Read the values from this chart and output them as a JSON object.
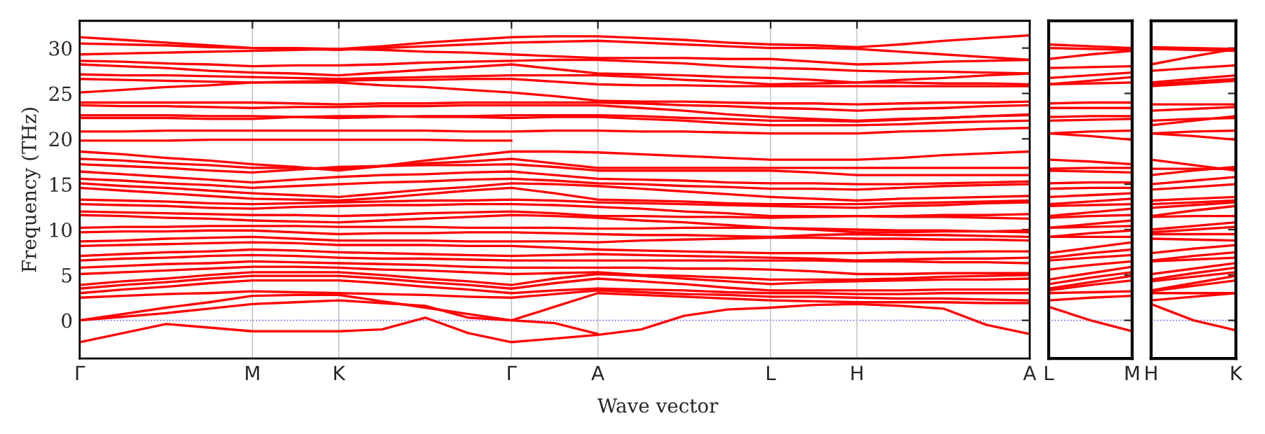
{
  "chart_data": [
    {
      "type": "line",
      "ylabel": "Frequency (THz)",
      "xlabel": "Wave vector",
      "categories": [
        "Γ",
        null,
        null,
        null,
        "M",
        null,
        "K",
        null,
        null,
        null,
        "Γ",
        null,
        "A",
        null,
        null,
        null,
        "L",
        null,
        "H",
        null,
        null,
        null,
        "A"
      ],
      "ylim": [
        -4.2,
        33
      ],
      "yticks": [
        0,
        5,
        10,
        15,
        20,
        25,
        30
      ],
      "grid": "x",
      "line_style": "solid",
      "ref_lines": [
        {
          "axis": "y",
          "value": 0,
          "color": "#6666ff",
          "line_style": "dotted"
        }
      ],
      "series": [
        {
          "color": "#ff0000",
          "values": [
            31.2,
            30.9,
            30.6,
            30.3,
            30.0,
            30.0,
            29.9,
            30.2,
            30.6,
            30.9,
            31.2,
            31.3,
            31.3,
            31.1,
            30.9,
            30.6,
            30.4,
            30.3,
            30.1,
            30.4,
            30.8,
            31.1,
            31.4
          ]
        },
        {
          "color": "#ff0000",
          "values": [
            30.5,
            30.4,
            30.3,
            30.1,
            30.0,
            29.9,
            29.8,
            30.0,
            30.2,
            30.4,
            30.6,
            30.7,
            30.8,
            30.6,
            30.4,
            30.2,
            30.0,
            30.0,
            29.9,
            29.6,
            29.3,
            29.0,
            28.7
          ]
        },
        {
          "color": "#ff0000",
          "values": [
            29.3,
            29.4,
            29.5,
            29.6,
            29.7,
            29.8,
            29.9,
            29.8,
            29.6,
            29.5,
            29.3,
            29.1,
            28.9,
            28.9,
            28.9,
            28.8,
            28.8,
            28.5,
            28.2,
            28.3,
            28.5,
            28.6,
            28.7
          ]
        },
        {
          "color": "#ff0000",
          "values": [
            28.6,
            28.5,
            28.3,
            28.2,
            28.0,
            28.1,
            28.1,
            28.2,
            28.4,
            28.5,
            28.6,
            28.7,
            28.7,
            28.5,
            28.3,
            28.0,
            27.8,
            27.7,
            27.5,
            27.4,
            27.4,
            27.3,
            27.2
          ]
        },
        {
          "color": "#ff0000",
          "values": [
            28.2,
            28.0,
            27.8,
            27.5,
            27.3,
            27.2,
            27.0,
            27.3,
            27.6,
            27.9,
            28.2,
            27.7,
            27.2,
            27.1,
            27.0,
            26.8,
            26.7,
            26.5,
            26.2,
            26.5,
            26.7,
            27.0,
            27.2
          ]
        },
        {
          "color": "#ff0000",
          "values": [
            27.1,
            27.0,
            27.0,
            26.9,
            26.8,
            26.7,
            26.6,
            26.7,
            26.8,
            26.9,
            27.0,
            27.0,
            27.0,
            26.8,
            26.5,
            26.3,
            26.0,
            26.1,
            26.2,
            26.2,
            26.1,
            26.1,
            26.0
          ]
        },
        {
          "color": "#ff0000",
          "values": [
            26.6,
            26.5,
            26.4,
            26.3,
            26.2,
            26.3,
            26.4,
            26.5,
            26.5,
            26.6,
            26.6,
            26.3,
            26.0,
            25.9,
            25.9,
            25.8,
            25.8,
            25.8,
            25.8,
            25.8,
            25.8,
            25.8,
            25.8
          ]
        },
        {
          "color": "#ff0000",
          "values": [
            25.1,
            25.4,
            25.7,
            25.9,
            26.2,
            26.2,
            26.2,
            25.9,
            25.7,
            25.4,
            25.1,
            24.7,
            24.2,
            24.1,
            24.1,
            24.0,
            23.9,
            23.9,
            23.8,
            23.9,
            24.0,
            24.0,
            24.1
          ]
        },
        {
          "color": "#ff0000",
          "values": [
            24.0,
            24.0,
            24.0,
            24.0,
            24.0,
            23.9,
            23.8,
            23.9,
            23.9,
            24.0,
            24.0,
            24.0,
            24.0,
            23.9,
            23.7,
            23.6,
            23.4,
            23.3,
            23.1,
            23.3,
            23.4,
            23.6,
            23.7
          ]
        },
        {
          "color": "#ff0000",
          "values": [
            23.7,
            23.6,
            23.6,
            23.5,
            23.4,
            23.5,
            23.5,
            23.6,
            23.6,
            23.7,
            23.7,
            23.7,
            23.7,
            23.4,
            23.1,
            22.7,
            22.4,
            22.2,
            22.0,
            22.2,
            22.3,
            22.5,
            22.6
          ]
        },
        {
          "color": "#ff0000",
          "values": [
            22.6,
            22.6,
            22.6,
            22.5,
            22.5,
            22.4,
            22.3,
            22.4,
            22.5,
            22.5,
            22.6,
            22.6,
            22.6,
            22.5,
            22.3,
            22.2,
            22.0,
            22.0,
            21.9,
            22.1,
            22.3,
            22.5,
            22.7
          ]
        },
        {
          "color": "#ff0000",
          "values": [
            22.3,
            22.3,
            22.3,
            22.2,
            22.2,
            22.4,
            22.5,
            22.5,
            22.4,
            22.4,
            22.3,
            22.4,
            22.4,
            22.2,
            22.0,
            21.7,
            21.5,
            21.5,
            21.5,
            21.6,
            21.8,
            21.9,
            22.0
          ]
        },
        {
          "color": "#ff0000",
          "values": [
            20.8,
            20.8,
            20.9,
            20.9,
            20.9,
            20.9,
            20.9,
            20.9,
            20.9,
            20.8,
            20.8,
            20.9,
            20.9,
            20.8,
            20.8,
            20.7,
            20.6,
            20.6,
            20.6,
            20.8,
            20.9,
            21.1,
            21.2
          ]
        },
        {
          "color": "#ff0000",
          "values": [
            19.8,
            19.8,
            19.8,
            19.9,
            19.9,
            19.9,
            19.9,
            19.9,
            19.9,
            19.8,
            19.8,
            null,
            null,
            null,
            null,
            null,
            null,
            null,
            null,
            null,
            null,
            null,
            null
          ]
        },
        {
          "color": "#ff0000",
          "values": [
            18.6,
            18.3,
            17.9,
            17.6,
            17.2,
            16.9,
            16.5,
            17.0,
            17.6,
            18.1,
            18.6,
            18.6,
            18.5,
            18.3,
            18.1,
            17.9,
            17.7,
            17.7,
            17.7,
            17.9,
            18.2,
            18.4,
            18.6
          ]
        },
        {
          "color": "#ff0000",
          "values": [
            17.8,
            17.6,
            17.3,
            17.1,
            16.8,
            16.8,
            16.7,
            17.0,
            17.3,
            17.5,
            17.8,
            17.3,
            16.8,
            16.8,
            16.8,
            16.8,
            16.8,
            16.8,
            16.8,
            16.8,
            16.8,
            16.8,
            16.8
          ]
        },
        {
          "color": "#ff0000",
          "values": [
            17.2,
            17.0,
            16.8,
            16.5,
            16.3,
            16.6,
            16.9,
            17.0,
            17.1,
            17.1,
            17.2,
            16.9,
            16.5,
            16.5,
            16.5,
            16.5,
            16.5,
            16.3,
            16.0,
            16.0,
            16.0,
            16.0,
            16.0
          ]
        },
        {
          "color": "#ff0000",
          "values": [
            16.4,
            16.1,
            15.8,
            15.5,
            15.2,
            15.5,
            15.8,
            16.0,
            16.1,
            16.3,
            16.4,
            16.0,
            15.6,
            15.5,
            15.4,
            15.2,
            15.1,
            15.1,
            15.0,
            15.0,
            15.1,
            15.2,
            15.3
          ]
        },
        {
          "color": "#ff0000",
          "values": [
            15.6,
            15.4,
            15.1,
            14.9,
            14.6,
            14.8,
            15.0,
            15.2,
            15.3,
            15.5,
            15.6,
            15.4,
            15.1,
            15.0,
            14.8,
            14.7,
            14.5,
            14.5,
            14.4,
            14.6,
            14.8,
            14.9,
            15.0
          ]
        },
        {
          "color": "#ff0000",
          "values": [
            15.1,
            14.8,
            14.6,
            14.3,
            14.0,
            13.8,
            13.6,
            14.0,
            14.4,
            14.7,
            15.1,
            15.0,
            14.8,
            14.5,
            14.2,
            13.9,
            13.6,
            13.4,
            13.2,
            13.4,
            13.5,
            13.6,
            13.7
          ]
        },
        {
          "color": "#ff0000",
          "values": [
            14.6,
            14.3,
            14.0,
            13.7,
            13.4,
            13.3,
            13.2,
            13.5,
            13.9,
            14.3,
            14.6,
            14.0,
            13.3,
            13.2,
            13.1,
            12.9,
            12.8,
            12.8,
            12.8,
            12.9,
            13.0,
            13.1,
            13.2
          ]
        },
        {
          "color": "#ff0000",
          "values": [
            13.3,
            13.2,
            13.1,
            12.9,
            12.8,
            12.9,
            13.0,
            13.1,
            13.2,
            13.2,
            13.3,
            13.2,
            13.0,
            12.9,
            12.8,
            12.7,
            12.6,
            12.5,
            12.4,
            12.6,
            12.7,
            12.9,
            13.0
          ]
        },
        {
          "color": "#ff0000",
          "values": [
            12.8,
            12.7,
            12.6,
            12.4,
            12.3,
            12.5,
            12.6,
            12.7,
            12.7,
            12.8,
            12.8,
            12.7,
            12.5,
            12.3,
            12.0,
            11.8,
            11.5,
            11.5,
            11.5,
            11.4,
            11.4,
            11.3,
            11.2
          ]
        },
        {
          "color": "#ff0000",
          "values": [
            12.0,
            11.9,
            11.8,
            11.7,
            11.6,
            11.6,
            11.5,
            11.6,
            11.8,
            11.9,
            12.0,
            11.8,
            11.5,
            11.5,
            11.4,
            11.4,
            11.3,
            11.4,
            11.5,
            11.5,
            11.6,
            11.6,
            11.7
          ]
        },
        {
          "color": "#ff0000",
          "values": [
            11.6,
            11.5,
            11.3,
            11.2,
            11.0,
            10.9,
            10.8,
            11.0,
            11.2,
            11.4,
            11.6,
            11.5,
            11.3,
            11.0,
            10.8,
            10.5,
            10.2,
            10.1,
            10.0,
            9.9,
            9.9,
            9.8,
            9.7
          ]
        },
        {
          "color": "#ff0000",
          "values": [
            10.2,
            10.3,
            10.3,
            10.4,
            10.4,
            10.4,
            10.3,
            10.3,
            10.3,
            10.2,
            10.2,
            10.2,
            10.1,
            10.1,
            10.2,
            10.2,
            10.2,
            10.0,
            9.7,
            9.7,
            9.8,
            9.8,
            9.9
          ]
        },
        {
          "color": "#ff0000",
          "values": [
            9.7,
            9.8,
            9.8,
            9.9,
            9.9,
            9.7,
            9.5,
            9.6,
            9.6,
            9.7,
            9.7,
            9.6,
            9.5,
            9.4,
            9.4,
            9.3,
            9.2,
            9.4,
            9.5,
            9.4,
            9.4,
            9.3,
            9.2
          ]
        },
        {
          "color": "#ff0000",
          "values": [
            8.7,
            8.8,
            9.0,
            9.1,
            9.2,
            9.0,
            8.8,
            8.8,
            8.8,
            8.7,
            8.7,
            8.7,
            8.6,
            8.8,
            8.9,
            9.0,
            9.1,
            9.1,
            9.0,
            9.0,
            8.9,
            8.9,
            8.8
          ]
        },
        {
          "color": "#ff0000",
          "values": [
            8.2,
            8.3,
            8.4,
            8.5,
            8.6,
            8.5,
            8.3,
            8.3,
            8.3,
            8.2,
            8.2,
            8.0,
            7.8,
            7.7,
            7.6,
            7.5,
            7.4,
            7.4,
            7.4,
            7.5,
            7.5,
            7.6,
            7.6
          ]
        },
        {
          "color": "#ff0000",
          "values": [
            7.1,
            7.3,
            7.5,
            7.6,
            7.8,
            7.7,
            7.5,
            7.4,
            7.3,
            7.2,
            7.1,
            7.2,
            7.3,
            7.2,
            7.1,
            7.0,
            6.9,
            6.8,
            6.6,
            6.7,
            6.8,
            6.8,
            6.9
          ]
        },
        {
          "color": "#ff0000",
          "values": [
            6.6,
            6.8,
            6.9,
            7.1,
            7.2,
            7.1,
            6.9,
            6.8,
            6.8,
            6.7,
            6.6,
            6.6,
            6.6,
            6.6,
            6.6,
            6.6,
            6.6,
            6.6,
            6.5,
            6.5,
            6.4,
            6.4,
            6.3
          ]
        },
        {
          "color": "#ff0000",
          "values": [
            5.8,
            6.0,
            6.2,
            6.3,
            6.5,
            6.4,
            6.3,
            6.2,
            6.1,
            5.9,
            5.8,
            5.8,
            5.8,
            5.8,
            5.7,
            5.7,
            5.6,
            5.4,
            5.1,
            5.1,
            5.2,
            5.2,
            5.2
          ]
        },
        {
          "color": "#ff0000",
          "values": [
            5.1,
            5.3,
            5.5,
            5.7,
            5.9,
            5.9,
            5.8,
            5.6,
            5.5,
            5.3,
            5.1,
            5.2,
            5.3,
            5.0,
            4.9,
            4.7,
            4.5,
            4.5,
            4.5,
            4.6,
            4.8,
            4.9,
            5.0
          ]
        },
        {
          "color": "#ff0000",
          "values": [
            3.9,
            4.3,
            4.6,
            5.0,
            5.3,
            5.3,
            5.3,
            5.0,
            4.6,
            4.3,
            3.9,
            4.6,
            5.1,
            4.9,
            4.6,
            4.3,
            4.0,
            4.2,
            4.3,
            4.4,
            4.5,
            4.5,
            4.6
          ]
        },
        {
          "color": "#ff0000",
          "values": [
            3.5,
            3.9,
            4.2,
            4.6,
            4.9,
            4.9,
            4.9,
            4.6,
            4.2,
            3.9,
            3.5,
            4.1,
            4.6,
            4.3,
            4.0,
            3.6,
            3.3,
            3.3,
            3.3,
            3.3,
            3.4,
            3.4,
            3.4
          ]
        },
        {
          "color": "#ff0000",
          "values": [
            3.0,
            3.4,
            3.7,
            4.1,
            4.4,
            4.4,
            4.4,
            4.1,
            3.7,
            3.4,
            3.0,
            3.3,
            3.5,
            3.4,
            3.3,
            3.1,
            3.0,
            3.0,
            2.9,
            2.9,
            3.0,
            3.0,
            3.0
          ]
        },
        {
          "color": "#ff0000",
          "values": [
            2.5,
            2.7,
            2.9,
            3.0,
            3.2,
            3.1,
            3.0,
            2.9,
            2.8,
            2.6,
            2.5,
            2.9,
            3.3,
            3.1,
            2.9,
            2.8,
            2.6,
            2.6,
            2.5,
            2.4,
            2.4,
            2.3,
            2.2
          ]
        },
        {
          "color": "#ff0000",
          "values": [
            0,
            0.7,
            1.4,
            2.0,
            2.7,
            2.8,
            2.8,
            2.1,
            1.4,
            0.7,
            0,
            1.5,
            3.0,
            2.8,
            2.6,
            2.4,
            2.2,
            2.1,
            2.0,
            2.0,
            2.0,
            1.9,
            1.9
          ]
        },
        {
          "color": "#ff0000",
          "values": [
            0,
            0.4,
            0.8,
            1.3,
            1.8,
            2.0,
            2.2,
            1.9,
            1.6,
            0.3,
            0,
            -0.3,
            -1.5,
            null,
            null,
            null,
            null,
            null,
            null,
            null,
            null,
            null,
            null
          ]
        },
        {
          "color": "#ff0000",
          "values": [
            -2.4,
            -1.4,
            -0.4,
            -0.8,
            -1.2,
            -1.2,
            -1.2,
            -1.0,
            0.3,
            -1.4,
            -2.4,
            -2.0,
            -1.6,
            -1.0,
            0.5,
            1.2,
            1.4,
            1.7,
            1.8,
            1.6,
            1.3,
            -0.5,
            -1.5
          ]
        }
      ]
    },
    {
      "type": "line",
      "categories": [
        "L",
        null,
        "M"
      ],
      "ylim": [
        -4.2,
        33
      ],
      "yticks": [
        0,
        5,
        10,
        15,
        20,
        25,
        30
      ],
      "tick_labels": "x",
      "line_style": "solid",
      "ref_lines": [
        {
          "axis": "y",
          "value": 0,
          "color": "#6666ff",
          "line_style": "dotted"
        }
      ],
      "series": [
        {
          "color": "#ff0000",
          "values": [
            30.4,
            30.2,
            30.0
          ]
        },
        {
          "color": "#ff0000",
          "values": [
            30.0,
            29.9,
            29.8
          ]
        },
        {
          "color": "#ff0000",
          "values": [
            28.8,
            29.3,
            29.7
          ]
        },
        {
          "color": "#ff0000",
          "values": [
            27.8,
            27.9,
            28.0
          ]
        },
        {
          "color": "#ff0000",
          "values": [
            26.7,
            27.0,
            27.3
          ]
        },
        {
          "color": "#ff0000",
          "values": [
            26.0,
            26.4,
            26.8
          ]
        },
        {
          "color": "#ff0000",
          "values": [
            26.0,
            26.1,
            26.2
          ]
        },
        {
          "color": "#ff0000",
          "values": [
            23.9,
            24.0,
            24.0
          ]
        },
        {
          "color": "#ff0000",
          "values": [
            23.4,
            23.4,
            23.4
          ]
        },
        {
          "color": "#ff0000",
          "values": [
            22.4,
            22.5,
            22.5
          ]
        },
        {
          "color": "#ff0000",
          "values": [
            22.0,
            22.1,
            22.2
          ]
        },
        {
          "color": "#ff0000",
          "values": [
            20.6,
            20.8,
            20.9
          ]
        },
        {
          "color": "#ff0000",
          "values": [
            20.6,
            20.3,
            19.9
          ]
        },
        {
          "color": "#ff0000",
          "values": [
            17.7,
            17.5,
            17.2
          ]
        },
        {
          "color": "#ff0000",
          "values": [
            16.7,
            16.8,
            16.8
          ]
        },
        {
          "color": "#ff0000",
          "values": [
            16.5,
            16.4,
            16.3
          ]
        },
        {
          "color": "#ff0000",
          "values": [
            15.1,
            15.2,
            15.2
          ]
        },
        {
          "color": "#ff0000",
          "values": [
            14.5,
            14.6,
            14.6
          ]
        },
        {
          "color": "#ff0000",
          "values": [
            13.6,
            13.8,
            14.0
          ]
        },
        {
          "color": "#ff0000",
          "values": [
            12.8,
            13.1,
            13.4
          ]
        },
        {
          "color": "#ff0000",
          "values": [
            12.6,
            12.7,
            12.8
          ]
        },
        {
          "color": "#ff0000",
          "values": [
            11.5,
            11.9,
            12.3
          ]
        },
        {
          "color": "#ff0000",
          "values": [
            11.3,
            11.5,
            11.6
          ]
        },
        {
          "color": "#ff0000",
          "values": [
            10.2,
            10.6,
            11.0
          ]
        },
        {
          "color": "#ff0000",
          "values": [
            10.2,
            10.3,
            10.4
          ]
        },
        {
          "color": "#ff0000",
          "values": [
            9.2,
            9.6,
            9.9
          ]
        },
        {
          "color": "#ff0000",
          "values": [
            9.2,
            9.2,
            9.2
          ]
        },
        {
          "color": "#ff0000",
          "values": [
            7.4,
            8.0,
            8.6
          ]
        },
        {
          "color": "#ff0000",
          "values": [
            6.9,
            7.4,
            7.8
          ]
        },
        {
          "color": "#ff0000",
          "values": [
            6.6,
            6.9,
            7.2
          ]
        },
        {
          "color": "#ff0000",
          "values": [
            5.6,
            6.1,
            6.5
          ]
        },
        {
          "color": "#ff0000",
          "values": [
            4.5,
            5.2,
            5.9
          ]
        },
        {
          "color": "#ff0000",
          "values": [
            4.0,
            4.7,
            5.3
          ]
        },
        {
          "color": "#ff0000",
          "values": [
            3.5,
            4.2,
            4.9
          ]
        },
        {
          "color": "#ff0000",
          "values": [
            3.3,
            3.9,
            4.4
          ]
        },
        {
          "color": "#ff0000",
          "values": [
            3.0,
            3.1,
            3.2
          ]
        },
        {
          "color": "#ff0000",
          "values": [
            2.2,
            2.5,
            2.7
          ]
        },
        {
          "color": "#ff0000",
          "values": [
            1.5,
            0.0,
            -1.2
          ]
        }
      ]
    },
    {
      "type": "line",
      "categories": [
        "H",
        null,
        "K"
      ],
      "ylim": [
        -4.2,
        33
      ],
      "yticks": [
        0,
        5,
        10,
        15,
        20,
        25,
        30
      ],
      "tick_labels": "x",
      "line_style": "solid",
      "ref_lines": [
        {
          "axis": "y",
          "value": 0,
          "color": "#6666ff",
          "line_style": "dotted"
        }
      ],
      "series": [
        {
          "color": "#ff0000",
          "values": [
            30.1,
            30.0,
            29.9
          ]
        },
        {
          "color": "#ff0000",
          "values": [
            29.9,
            29.8,
            29.7
          ]
        },
        {
          "color": "#ff0000",
          "values": [
            28.2,
            29.1,
            29.9
          ]
        },
        {
          "color": "#ff0000",
          "values": [
            27.5,
            27.8,
            28.1
          ]
        },
        {
          "color": "#ff0000",
          "values": [
            26.2,
            26.6,
            27.0
          ]
        },
        {
          "color": "#ff0000",
          "values": [
            26.0,
            26.3,
            26.6
          ]
        },
        {
          "color": "#ff0000",
          "values": [
            25.8,
            26.1,
            26.4
          ]
        },
        {
          "color": "#ff0000",
          "values": [
            23.8,
            23.8,
            23.8
          ]
        },
        {
          "color": "#ff0000",
          "values": [
            23.1,
            23.3,
            23.5
          ]
        },
        {
          "color": "#ff0000",
          "values": [
            22.0,
            22.2,
            22.3
          ]
        },
        {
          "color": "#ff0000",
          "values": [
            21.5,
            22.0,
            22.5
          ]
        },
        {
          "color": "#ff0000",
          "values": [
            20.6,
            20.8,
            20.9
          ]
        },
        {
          "color": "#ff0000",
          "values": [
            20.6,
            20.3,
            19.9
          ]
        },
        {
          "color": "#ff0000",
          "values": [
            17.7,
            17.1,
            16.5
          ]
        },
        {
          "color": "#ff0000",
          "values": [
            16.7,
            16.7,
            16.7
          ]
        },
        {
          "color": "#ff0000",
          "values": [
            16.0,
            16.5,
            16.9
          ]
        },
        {
          "color": "#ff0000",
          "values": [
            15.0,
            15.4,
            15.8
          ]
        },
        {
          "color": "#ff0000",
          "values": [
            14.4,
            14.7,
            15.0
          ]
        },
        {
          "color": "#ff0000",
          "values": [
            13.2,
            13.4,
            13.6
          ]
        },
        {
          "color": "#ff0000",
          "values": [
            12.8,
            13.0,
            13.2
          ]
        },
        {
          "color": "#ff0000",
          "values": [
            12.4,
            12.7,
            13.0
          ]
        },
        {
          "color": "#ff0000",
          "values": [
            11.5,
            12.1,
            12.6
          ]
        },
        {
          "color": "#ff0000",
          "values": [
            11.4,
            11.5,
            11.5
          ]
        },
        {
          "color": "#ff0000",
          "values": [
            10.0,
            10.4,
            10.8
          ]
        },
        {
          "color": "#ff0000",
          "values": [
            9.7,
            10.0,
            10.3
          ]
        },
        {
          "color": "#ff0000",
          "values": [
            9.5,
            9.5,
            9.5
          ]
        },
        {
          "color": "#ff0000",
          "values": [
            9.0,
            8.9,
            8.8
          ]
        },
        {
          "color": "#ff0000",
          "values": [
            7.4,
            7.9,
            8.3
          ]
        },
        {
          "color": "#ff0000",
          "values": [
            6.6,
            7.1,
            7.5
          ]
        },
        {
          "color": "#ff0000",
          "values": [
            6.5,
            6.7,
            6.9
          ]
        },
        {
          "color": "#ff0000",
          "values": [
            5.1,
            5.7,
            6.3
          ]
        },
        {
          "color": "#ff0000",
          "values": [
            4.5,
            5.2,
            5.8
          ]
        },
        {
          "color": "#ff0000",
          "values": [
            4.3,
            4.8,
            5.3
          ]
        },
        {
          "color": "#ff0000",
          "values": [
            3.3,
            4.1,
            4.9
          ]
        },
        {
          "color": "#ff0000",
          "values": [
            3.2,
            3.8,
            4.4
          ]
        },
        {
          "color": "#ff0000",
          "values": [
            3.0,
            3.0,
            3.0
          ]
        },
        {
          "color": "#ff0000",
          "values": [
            2.2,
            2.6,
            3.0
          ]
        },
        {
          "color": "#ff0000",
          "values": [
            1.8,
            0.0,
            -1.1
          ]
        }
      ]
    }
  ]
}
